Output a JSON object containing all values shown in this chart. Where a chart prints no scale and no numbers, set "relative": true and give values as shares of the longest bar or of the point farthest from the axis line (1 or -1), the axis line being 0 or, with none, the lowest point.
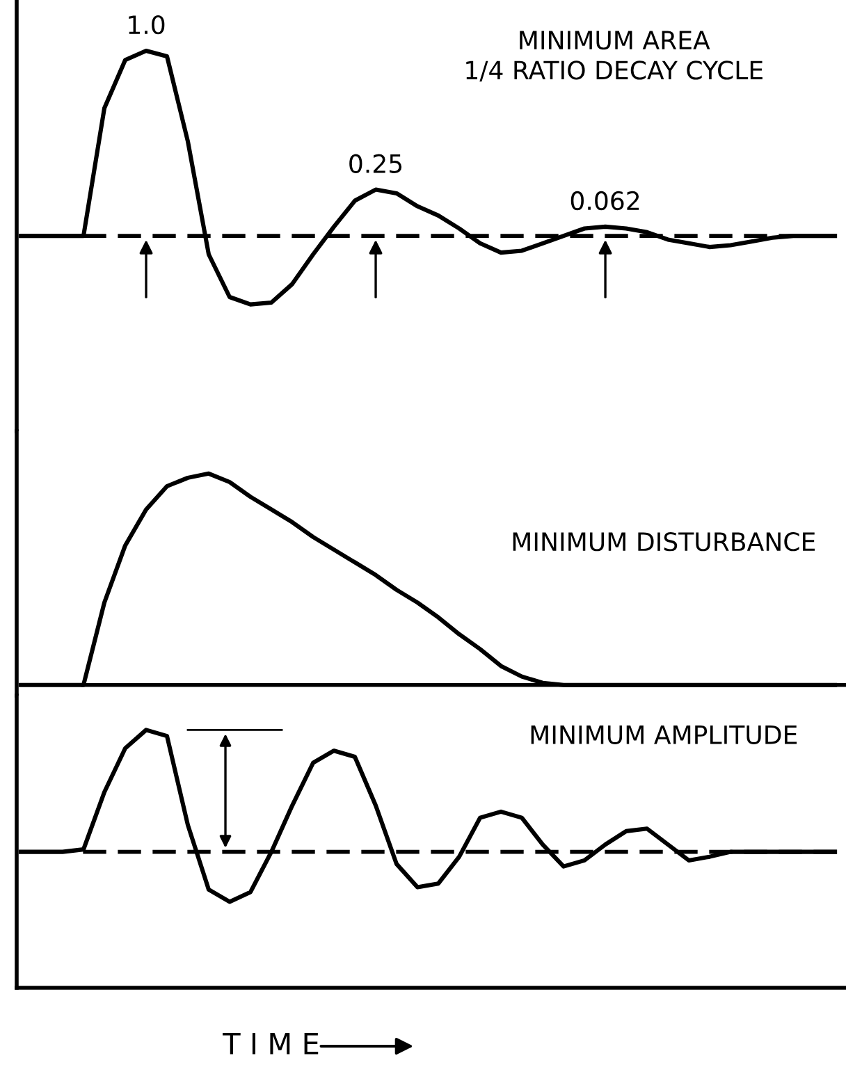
{
  "chart_data": [
    {
      "type": "line",
      "relative": true,
      "title": "MINIMUM AREA\n1/4 RATIO DECAY CYCLE",
      "annotations": [
        "1.0",
        "0.25",
        "0.062"
      ],
      "categories": [
        null,
        null,
        null,
        null,
        null,
        null,
        null,
        null,
        null,
        null,
        null,
        null,
        null,
        null,
        null,
        null,
        null,
        null,
        null,
        null,
        null,
        null,
        null,
        null,
        null,
        null,
        null,
        null,
        null,
        null,
        null,
        null,
        null,
        null,
        null,
        null,
        null,
        null,
        null,
        null
      ],
      "series": [
        {
          "color": "#000000",
          "values": [
            0,
            0,
            0,
            0,
            0.69,
            0.95,
            1.0,
            0.97,
            0.51,
            -0.1,
            -0.33,
            -0.37,
            -0.36,
            -0.26,
            -0.1,
            0.05,
            0.19,
            0.25,
            0.23,
            0.16,
            0.11,
            0.04,
            -0.04,
            -0.09,
            -0.08,
            -0.04,
            0,
            0.04,
            0.05,
            0.04,
            0.02,
            -0.02,
            -0.04,
            -0.06,
            -0.05,
            -0.03,
            -0.01,
            0,
            0,
            0
          ]
        }
      ],
      "ref_lines": [
        {
          "axis": "y",
          "value": 0,
          "line_style": "dashed"
        }
      ],
      "marker": "none",
      "line_style": "solid",
      "tick_labels": false
    },
    {
      "type": "line",
      "relative": true,
      "title": "MINIMUM DISTURBANCE",
      "categories": [
        null,
        null,
        null,
        null,
        null,
        null,
        null,
        null,
        null,
        null,
        null,
        null,
        null,
        null,
        null,
        null,
        null,
        null,
        null,
        null,
        null,
        null,
        null,
        null,
        null,
        null,
        null,
        null,
        null,
        null,
        null,
        null,
        null,
        null,
        null,
        null,
        null,
        null,
        null,
        null
      ],
      "series": [
        {
          "color": "#000000",
          "values": [
            0,
            0,
            0,
            0,
            0.39,
            0.66,
            0.83,
            0.94,
            0.98,
            1.0,
            0.96,
            0.89,
            0.83,
            0.77,
            0.7,
            0.64,
            0.58,
            0.52,
            0.45,
            0.39,
            0.32,
            0.24,
            0.17,
            0.09,
            0.04,
            0.01,
            0,
            0,
            0,
            0,
            0,
            0,
            0,
            0,
            0,
            0,
            0,
            0,
            0,
            0
          ]
        }
      ],
      "ref_lines": [
        {
          "axis": "y",
          "value": 0,
          "line_style": "solid"
        }
      ],
      "marker": "none",
      "line_style": "solid",
      "tick_labels": false
    },
    {
      "type": "line",
      "relative": true,
      "title": "MINIMUM AMPLITUDE",
      "xlabel": "T I M E",
      "categories": [
        null,
        null,
        null,
        null,
        null,
        null,
        null,
        null,
        null,
        null,
        null,
        null,
        null,
        null,
        null,
        null,
        null,
        null,
        null,
        null,
        null,
        null,
        null,
        null,
        null,
        null,
        null,
        null,
        null,
        null,
        null,
        null,
        null,
        null,
        null,
        null,
        null,
        null,
        null,
        null
      ],
      "series": [
        {
          "color": "#000000",
          "values": [
            0,
            0,
            0,
            0.02,
            0.49,
            0.85,
            1.0,
            0.95,
            0.22,
            -0.31,
            -0.41,
            -0.33,
            0,
            0.38,
            0.73,
            0.83,
            0.78,
            0.38,
            -0.1,
            -0.29,
            -0.26,
            -0.04,
            0.28,
            0.33,
            0.28,
            0.06,
            -0.12,
            -0.07,
            0.06,
            0.17,
            0.19,
            0.06,
            -0.07,
            -0.04,
            0,
            0,
            0,
            0,
            0,
            0
          ]
        }
      ],
      "ref_lines": [
        {
          "axis": "y",
          "value": 0,
          "line_style": "dashed"
        }
      ],
      "marker": "none",
      "line_style": "solid",
      "tick_labels": false
    }
  ]
}
